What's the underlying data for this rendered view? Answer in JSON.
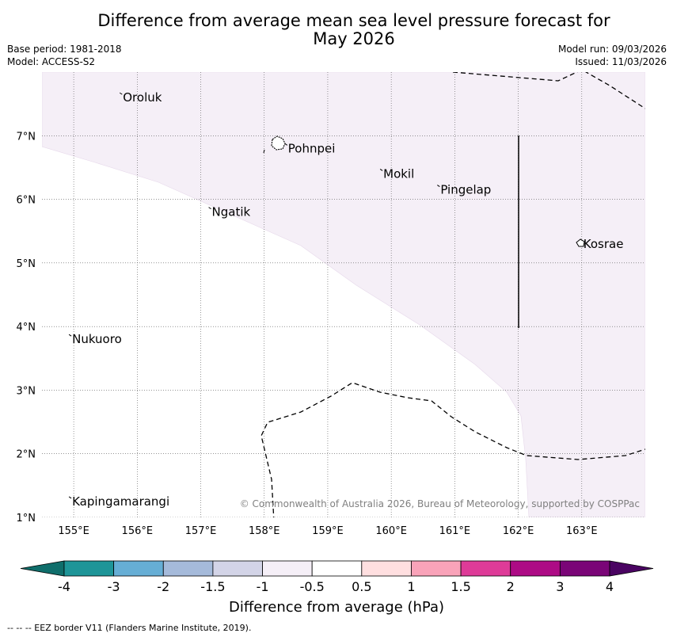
{
  "header": {
    "title_line1": "Difference from average mean sea level pressure forecast for",
    "title_line2": "May 2026",
    "base_period": "Base period: 1981-2018",
    "model": "Model: ACCESS-S2",
    "model_run": "Model run: 09/03/2026",
    "issued": "Issued: 11/03/2026"
  },
  "map": {
    "lon_range": [
      154.5,
      164.0
    ],
    "lat_range": [
      1.0,
      8.0
    ],
    "lon_ticks": [
      "155°E",
      "156°E",
      "157°E",
      "158°E",
      "159°E",
      "160°E",
      "161°E",
      "162°E",
      "163°E"
    ],
    "lat_ticks": [
      "1°N",
      "2°N",
      "3°N",
      "4°N",
      "5°N",
      "6°N",
      "7°N"
    ],
    "places": [
      {
        "name": "Oroluk",
        "lon": 155.75,
        "lat": 7.6
      },
      {
        "name": "Pohnpei",
        "lon": 158.35,
        "lat": 6.8
      },
      {
        "name": "Mokil",
        "lon": 159.85,
        "lat": 6.4
      },
      {
        "name": "Pingelap",
        "lon": 160.75,
        "lat": 6.15
      },
      {
        "name": "Ngatik",
        "lon": 157.15,
        "lat": 5.8
      },
      {
        "name": "Kosrae",
        "lon": 163.0,
        "lat": 5.3
      },
      {
        "name": "Nukuoro",
        "lon": 154.95,
        "lat": 3.8
      },
      {
        "name": "Kapingamarangi",
        "lon": 154.95,
        "lat": 1.25
      }
    ],
    "copyright": "© Commonwealth of Australia 2026, Bureau of Meteorology, supported by COSPPac",
    "shading_color": "#f5eff7"
  },
  "colorbar": {
    "label": "Difference from average (hPa)",
    "ticks": [
      "-4",
      "-3",
      "-2",
      "-1.5",
      "-1",
      "-0.5",
      "0.5",
      "1",
      "1.5",
      "2",
      "3",
      "4"
    ],
    "colors": [
      "#0f6e6b",
      "#1e9598",
      "#66aed5",
      "#a5bada",
      "#d3d4e7",
      "#f5eff7",
      "#ffffff",
      "#ffdfe0",
      "#f9a3b9",
      "#de3b98",
      "#ad0b85",
      "#7a0577",
      "#4a0462"
    ]
  },
  "footer": {
    "legend": "--  --  -- EEZ border V11 (Flanders Marine Institute, 2019)."
  }
}
